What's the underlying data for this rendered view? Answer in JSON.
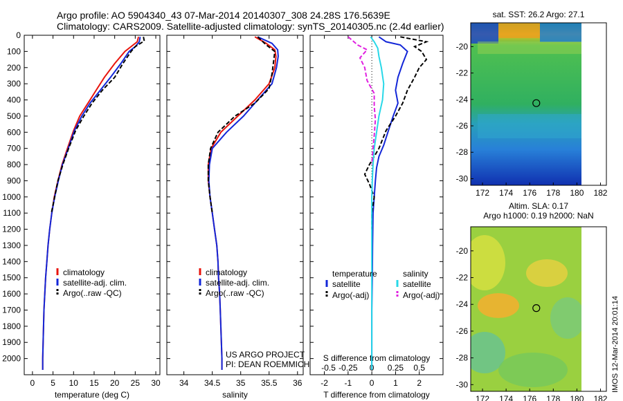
{
  "header": {
    "line1": "Argo profile: AO 5904340_43 07-Mar-2014 20140307_308 24.28S 176.5639E",
    "line2": "Climatology: CARS2009. Satellite-adjusted climatology: synTS_20140305.nc (2.4d earlier)"
  },
  "colors": {
    "climatology": "#e8140c",
    "satellite": "#1226d8",
    "argo": "#000000",
    "salinity_sat": "#28d8e8",
    "salinity_argo": "#e020e0"
  },
  "chart_data": [
    {
      "type": "line",
      "name": "temperature-profile",
      "xlabel": "temperature (deg C)",
      "ylabel": "",
      "xlim": [
        -2,
        31
      ],
      "ylim": [
        2100,
        0
      ],
      "xticks": [
        0,
        5,
        10,
        15,
        20,
        25,
        30
      ],
      "yticks": [
        0,
        100,
        200,
        300,
        400,
        500,
        600,
        700,
        800,
        900,
        1000,
        1100,
        1200,
        1300,
        1400,
        1500,
        1600,
        1700,
        1800,
        1900,
        2000
      ],
      "legend": [
        "climatology",
        "satellite-adj. clim.",
        "Argo(..raw -QC)"
      ],
      "legend_position": "center-left",
      "series": [
        {
          "name": "climatology",
          "style": "solid",
          "points": [
            [
              25.8,
              10
            ],
            [
              25.5,
              40
            ],
            [
              24,
              70
            ],
            [
              22.5,
              100
            ],
            [
              20,
              175
            ],
            [
              17.5,
              260
            ],
            [
              15.5,
              340
            ],
            [
              13.5,
              420
            ],
            [
              11.5,
              500
            ],
            [
              10,
              590
            ],
            [
              8.5,
              700
            ],
            [
              7.2,
              800
            ],
            [
              6.2,
              900
            ],
            [
              5.3,
              1000
            ],
            [
              4.7,
              1100
            ],
            [
              4.2,
              1200
            ],
            [
              3.8,
              1300
            ],
            [
              3.5,
              1400
            ],
            [
              3.2,
              1500
            ],
            [
              3,
              1600
            ],
            [
              2.8,
              1700
            ],
            [
              2.7,
              1800
            ],
            [
              2.6,
              1900
            ],
            [
              2.5,
              2000
            ],
            [
              2.5,
              2070
            ]
          ]
        },
        {
          "name": "satellite-adj. clim.",
          "style": "solid",
          "points": [
            [
              26.2,
              10
            ],
            [
              26,
              40
            ],
            [
              25,
              70
            ],
            [
              23.5,
              100
            ],
            [
              21.5,
              175
            ],
            [
              19,
              260
            ],
            [
              16.5,
              340
            ],
            [
              14,
              420
            ],
            [
              12,
              500
            ],
            [
              10.2,
              590
            ],
            [
              8.7,
              700
            ],
            [
              7.3,
              800
            ],
            [
              6.3,
              900
            ],
            [
              5.4,
              1000
            ],
            [
              4.7,
              1100
            ],
            [
              4.2,
              1200
            ],
            [
              3.8,
              1300
            ],
            [
              3.5,
              1400
            ],
            [
              3.2,
              1500
            ],
            [
              3,
              1600
            ],
            [
              2.8,
              1700
            ],
            [
              2.7,
              1800
            ],
            [
              2.6,
              1900
            ],
            [
              2.5,
              2000
            ],
            [
              2.5,
              2070
            ]
          ]
        },
        {
          "name": "Argo(..raw -QC)",
          "style": "dashed",
          "points": [
            [
              27,
              10
            ],
            [
              27.2,
              35
            ],
            [
              25,
              70
            ],
            [
              24,
              100
            ],
            [
              22,
              175
            ],
            [
              20,
              260
            ],
            [
              17,
              340
            ],
            [
              14.5,
              420
            ],
            [
              12.5,
              500
            ],
            [
              10.5,
              590
            ],
            [
              8.8,
              700
            ],
            [
              7.4,
              800
            ],
            [
              6.2,
              900
            ],
            [
              5.4,
              1000
            ],
            [
              4.6,
              1100
            ]
          ]
        }
      ]
    },
    {
      "type": "line",
      "name": "salinity-profile",
      "xlabel": "salinity",
      "ylabel": "",
      "xlim": [
        33.7,
        36.1
      ],
      "ylim": [
        2100,
        0
      ],
      "xticks": [
        34,
        34.5,
        35,
        35.5,
        36
      ],
      "legend": [
        "climatology",
        "satellite-adj. clim.",
        "Argo(..raw -QC)"
      ],
      "legend_position": "center-left",
      "annotation": [
        "US ARGO PROJECT",
        "PI: DEAN ROEMMICH"
      ],
      "series": [
        {
          "name": "climatology",
          "style": "solid",
          "points": [
            [
              35.25,
              10
            ],
            [
              35.45,
              50
            ],
            [
              35.6,
              90
            ],
            [
              35.62,
              130
            ],
            [
              35.6,
              200
            ],
            [
              35.5,
              300
            ],
            [
              35.25,
              400
            ],
            [
              34.95,
              500
            ],
            [
              34.65,
              600
            ],
            [
              34.48,
              700
            ],
            [
              34.43,
              800
            ],
            [
              34.43,
              900
            ],
            [
              34.46,
              1000
            ],
            [
              34.5,
              1100
            ],
            [
              34.54,
              1200
            ],
            [
              34.58,
              1300
            ],
            [
              34.6,
              1400
            ],
            [
              34.61,
              1500
            ],
            [
              34.63,
              1600
            ],
            [
              34.64,
              1700
            ],
            [
              34.65,
              1800
            ],
            [
              34.66,
              1900
            ],
            [
              34.67,
              2000
            ],
            [
              34.67,
              2070
            ]
          ]
        },
        {
          "name": "satellite-adj. clim.",
          "style": "solid",
          "points": [
            [
              35.3,
              10
            ],
            [
              35.55,
              50
            ],
            [
              35.65,
              90
            ],
            [
              35.66,
              130
            ],
            [
              35.63,
              200
            ],
            [
              35.55,
              300
            ],
            [
              35.3,
              400
            ],
            [
              35.05,
              500
            ],
            [
              34.75,
              600
            ],
            [
              34.5,
              700
            ],
            [
              34.45,
              800
            ],
            [
              34.44,
              900
            ],
            [
              34.46,
              1000
            ],
            [
              34.5,
              1100
            ],
            [
              34.54,
              1200
            ],
            [
              34.58,
              1300
            ],
            [
              34.6,
              1400
            ],
            [
              34.61,
              1500
            ],
            [
              34.63,
              1600
            ],
            [
              34.64,
              1700
            ],
            [
              34.65,
              1800
            ],
            [
              34.66,
              1900
            ],
            [
              34.67,
              2000
            ],
            [
              34.67,
              2070
            ]
          ]
        },
        {
          "name": "Argo(..raw -QC)",
          "style": "dashed",
          "points": [
            [
              35.3,
              10
            ],
            [
              35.45,
              60
            ],
            [
              35.6,
              100
            ],
            [
              35.58,
              160
            ],
            [
              35.55,
              240
            ],
            [
              35.5,
              330
            ],
            [
              35.25,
              420
            ],
            [
              34.9,
              500
            ],
            [
              34.6,
              600
            ],
            [
              34.47,
              700
            ],
            [
              34.43,
              800
            ],
            [
              34.43,
              900
            ],
            [
              34.46,
              1000
            ],
            [
              34.5,
              1100
            ]
          ]
        }
      ]
    },
    {
      "type": "line",
      "name": "difference-profile",
      "xlabel": "T difference from climatology",
      "xlabel_secondary": "S difference from climatology",
      "xlim": [
        -2.6,
        3.0
      ],
      "ylim": [
        2100,
        0
      ],
      "xticks": [
        "-2",
        "-1",
        "0",
        "1",
        "2"
      ],
      "xticks_values": [
        -2,
        -1,
        0,
        1,
        2
      ],
      "xticks_secondary": [
        "-0.5",
        "-0.25",
        "0",
        "0.25",
        "0.5"
      ],
      "xticks_secondary_values": [
        -2,
        -1,
        0,
        1,
        2
      ],
      "legend_temperature_title": "temperature",
      "legend_salinity_title": "salinity",
      "legend": [
        "satellite",
        "Argo(-adj)",
        "satellite",
        "Argo(-adj)"
      ],
      "series": [
        {
          "name": "temperature satellite",
          "style": "solid",
          "color_key": "satellite",
          "points": [
            [
              0.3,
              10
            ],
            [
              0.6,
              40
            ],
            [
              1.2,
              60
            ],
            [
              1.5,
              100
            ],
            [
              1.3,
              175
            ],
            [
              1.1,
              260
            ],
            [
              1.0,
              340
            ],
            [
              1.1,
              420
            ],
            [
              0.9,
              500
            ],
            [
              0.7,
              590
            ],
            [
              0.5,
              680
            ],
            [
              0.3,
              750
            ],
            [
              0.2,
              820
            ],
            [
              0.15,
              900
            ],
            [
              0.1,
              1000
            ],
            [
              0.05,
              1100
            ],
            [
              0.03,
              1300
            ],
            [
              0.02,
              1500
            ],
            [
              0,
              1700
            ],
            [
              0,
              2070
            ]
          ]
        },
        {
          "name": "temperature Argo(-adj)",
          "style": "dashed",
          "color_key": "argo",
          "points": [
            [
              1.2,
              10
            ],
            [
              2.3,
              40
            ],
            [
              1.8,
              70
            ],
            [
              2.1,
              100
            ],
            [
              2.3,
              150
            ],
            [
              2.0,
              200
            ],
            [
              1.8,
              260
            ],
            [
              1.5,
              340
            ],
            [
              1.3,
              420
            ],
            [
              1.0,
              500
            ],
            [
              0.6,
              590
            ],
            [
              0.3,
              700
            ],
            [
              -0.1,
              800
            ],
            [
              -0.3,
              860
            ],
            [
              -0.1,
              920
            ],
            [
              0.1,
              1000
            ],
            [
              0.0,
              1100
            ],
            [
              0.0,
              1200
            ]
          ]
        },
        {
          "name": "salinity satellite",
          "style": "solid",
          "color_key": "salinity_sat",
          "points": [
            [
              -0.05,
              10
            ],
            [
              0.1,
              40
            ],
            [
              0.25,
              80
            ],
            [
              0.3,
              130
            ],
            [
              0.4,
              200
            ],
            [
              0.5,
              300
            ],
            [
              0.45,
              400
            ],
            [
              0.3,
              500
            ],
            [
              0.2,
              600
            ],
            [
              0.1,
              700
            ],
            [
              0.05,
              800
            ],
            [
              0.02,
              900
            ],
            [
              0,
              1000
            ],
            [
              0,
              1200
            ],
            [
              0,
              1500
            ],
            [
              0,
              2070
            ]
          ]
        },
        {
          "name": "salinity Argo(-adj)",
          "style": "dashed",
          "color_key": "salinity_argo",
          "points": [
            [
              -1.0,
              10
            ],
            [
              -0.6,
              60
            ],
            [
              -0.2,
              90
            ],
            [
              -0.5,
              140
            ],
            [
              -0.3,
              200
            ],
            [
              -0.2,
              280
            ],
            [
              0.1,
              360
            ],
            [
              0.1,
              440
            ],
            [
              0.15,
              520
            ],
            [
              0.1,
              620
            ],
            [
              0.05,
              700
            ],
            [
              0,
              800
            ]
          ]
        }
      ]
    },
    {
      "type": "heatmap",
      "name": "sst-map",
      "title": "sat. SST: 26.2 Argo: 27.1",
      "xlim": [
        171,
        182.5
      ],
      "ylim": [
        -30.5,
        -18.2
      ],
      "xticks": [
        172,
        174,
        176,
        178,
        180,
        182
      ],
      "yticks": [
        -20,
        -22,
        -24,
        -26,
        -28,
        -30
      ],
      "marker": {
        "lon": 176.56,
        "lat": -24.28
      }
    },
    {
      "type": "heatmap",
      "name": "sla-map",
      "title": "Altim. SLA: 0.17",
      "subtitle": "Argo h1000: 0.19 h2000: NaN",
      "xlim": [
        171,
        182.5
      ],
      "ylim": [
        -30.5,
        -18.2
      ],
      "xticks": [
        172,
        174,
        176,
        178,
        180,
        182
      ],
      "yticks": [
        -20,
        -22,
        -24,
        -26,
        -28,
        -30
      ],
      "marker": {
        "lon": 176.56,
        "lat": -24.28
      }
    }
  ],
  "watermark": "IMOS 12-Mar-2014 20:01:14"
}
